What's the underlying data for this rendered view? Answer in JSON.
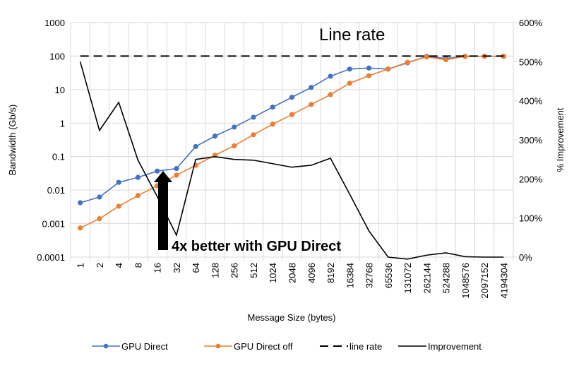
{
  "chart_data": {
    "type": "line",
    "xlabel": "Message Size (bytes)",
    "ylabel": "Bandwidth (Gb/s)",
    "y2label": "% Improvement",
    "categories": [
      "1",
      "2",
      "4",
      "8",
      "16",
      "32",
      "64",
      "128",
      "256",
      "512",
      "1024",
      "2048",
      "4096",
      "8192",
      "16384",
      "32768",
      "65536",
      "131072",
      "262144",
      "524288",
      "1048576",
      "2097152",
      "4194304"
    ],
    "yscale": "log",
    "ylim": [
      0.0001,
      1000
    ],
    "yticks": [
      "0.0001",
      "0.001",
      "0.01",
      "0.1",
      "1",
      "10",
      "100",
      "1000"
    ],
    "y2lim": [
      0,
      600
    ],
    "y2ticks": [
      "0%",
      "100%",
      "200%",
      "300%",
      "400%",
      "500%",
      "600%"
    ],
    "grid": true,
    "legend_position": "bottom",
    "series": [
      {
        "name": "GPU Direct",
        "axis": "left",
        "color": "#4472C4",
        "markers": true,
        "values": [
          0.0042,
          0.0062,
          0.017,
          0.024,
          0.037,
          0.044,
          0.2,
          0.41,
          0.76,
          1.5,
          3.0,
          5.9,
          11.6,
          25,
          41,
          44,
          41,
          63,
          98,
          85,
          98,
          99,
          99
        ]
      },
      {
        "name": "GPU Direct off",
        "axis": "left",
        "color": "#ED7D31",
        "markers": true,
        "values": [
          0.00074,
          0.0014,
          0.0033,
          0.0069,
          0.0135,
          0.028,
          0.055,
          0.11,
          0.21,
          0.45,
          0.93,
          1.8,
          3.6,
          7.1,
          15.5,
          26,
          41,
          65,
          95,
          78,
          98,
          98,
          98
        ]
      },
      {
        "name": "line rate",
        "axis": "left",
        "color": "#000000",
        "dash": true,
        "values": [
          100,
          100,
          100,
          100,
          100,
          100,
          100,
          100,
          100,
          100,
          100,
          100,
          100,
          100,
          100,
          100,
          100,
          100,
          100,
          100,
          100,
          100,
          100
        ]
      },
      {
        "name": "Improvement",
        "axis": "right",
        "color": "#000000",
        "values": [
          500,
          324,
          396,
          248,
          155,
          56,
          250,
          257,
          250,
          248,
          239,
          230,
          235,
          253,
          161,
          67,
          0,
          -5,
          5,
          11,
          1,
          0,
          0
        ]
      }
    ],
    "annotations": [
      "Line rate",
      "4x better with GPU Direct"
    ]
  }
}
